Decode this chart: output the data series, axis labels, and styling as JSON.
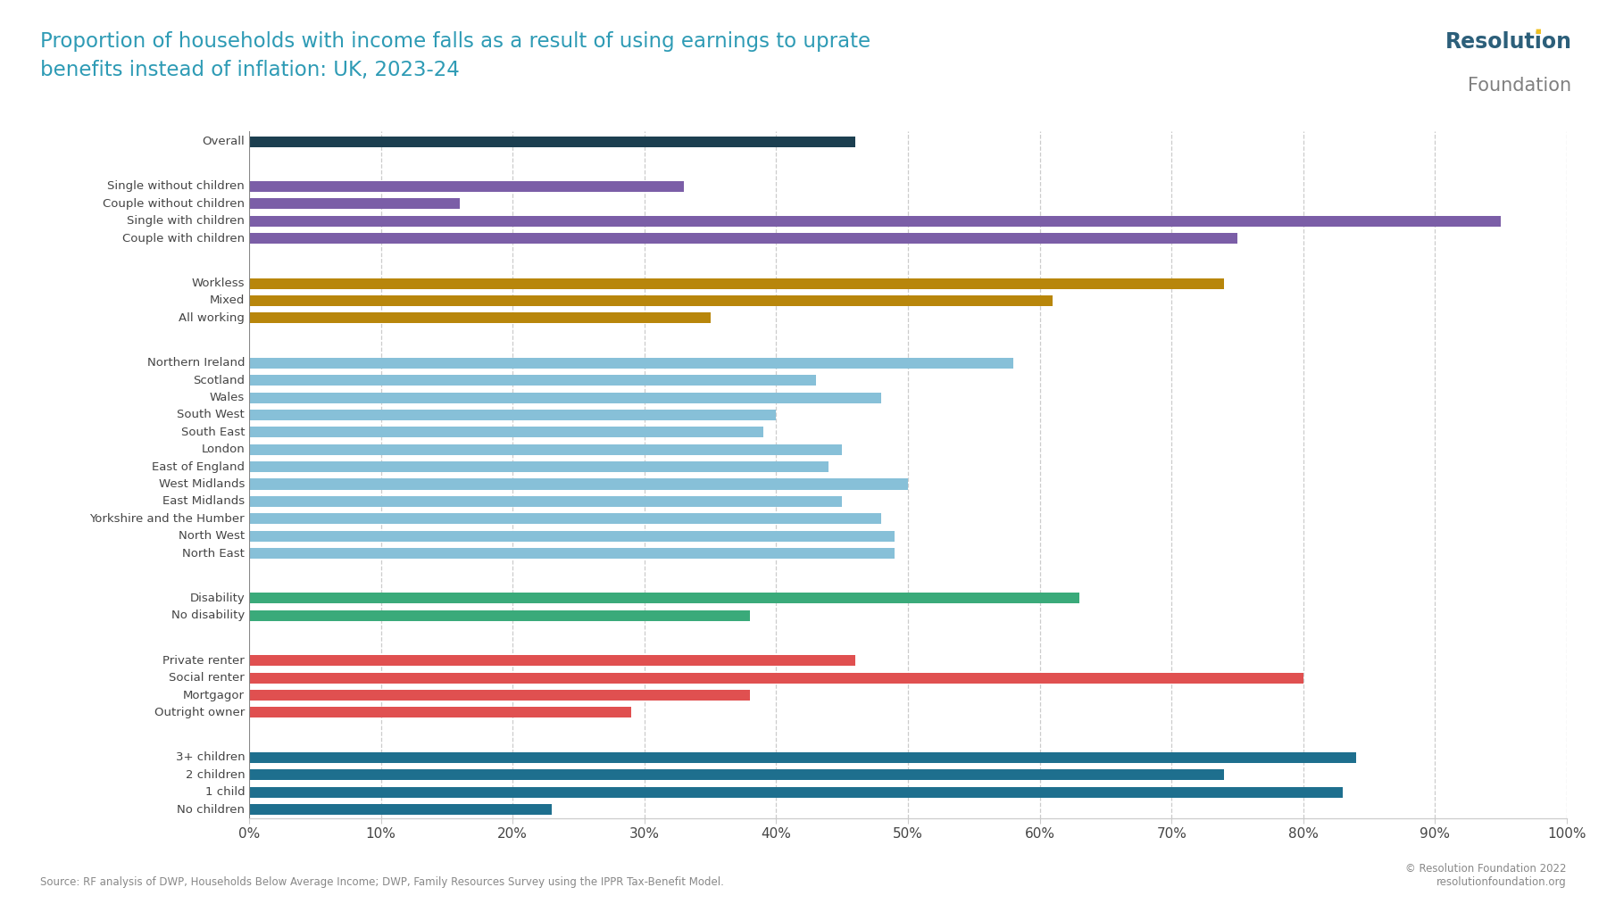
{
  "title": "Proportion of households with income falls as a result of using earnings to uprate\nbenefits instead of inflation: UK, 2023-24",
  "source_text": "Source: RF analysis of DWP, Households Below Average Income; DWP, Family Resources Survey using the IPPR Tax-Benefit Model.",
  "copyright_text": "© Resolution Foundation 2022\nresolutionfoundation.org",
  "background_color": "#ffffff",
  "title_color": "#2e9bb5",
  "categories": [
    "Overall",
    "",
    "Single without children",
    "Couple without children",
    "Single with children",
    "Couple with children",
    "",
    "Workless",
    "Mixed",
    "All working",
    "",
    "Northern Ireland",
    "Scotland",
    "Wales",
    "South West",
    "South East",
    "London",
    "East of England",
    "West Midlands",
    "East Midlands",
    "Yorkshire and the Humber",
    "North West",
    "North East",
    "",
    "Disability",
    "No disability",
    "",
    "Private renter",
    "Social renter",
    "Mortgagor",
    "Outright owner",
    "",
    "3+ children",
    "2 children",
    "1 child",
    "No children"
  ],
  "values": [
    46,
    null,
    33,
    16,
    95,
    75,
    null,
    74,
    61,
    35,
    null,
    58,
    43,
    48,
    40,
    39,
    45,
    44,
    50,
    45,
    48,
    49,
    49,
    null,
    63,
    38,
    null,
    46,
    80,
    38,
    29,
    null,
    84,
    74,
    83,
    23
  ],
  "bar_colors_list": [
    "#1c3f50",
    null,
    "#7b5ea7",
    "#7b5ea7",
    "#7b5ea7",
    "#7b5ea7",
    null,
    "#b8860b",
    "#b8860b",
    "#b8860b",
    null,
    "#87c0d8",
    "#87c0d8",
    "#87c0d8",
    "#87c0d8",
    "#87c0d8",
    "#87c0d8",
    "#87c0d8",
    "#87c0d8",
    "#87c0d8",
    "#87c0d8",
    "#87c0d8",
    "#87c0d8",
    null,
    "#3aaa7a",
    "#3aaa7a",
    null,
    "#e05050",
    "#e05050",
    "#e05050",
    "#e05050",
    null,
    "#1e6f8e",
    "#1e6f8e",
    "#1e6f8e",
    "#1e6f8e"
  ],
  "xlim": [
    0,
    100
  ],
  "xticks": [
    0,
    10,
    20,
    30,
    40,
    50,
    60,
    70,
    80,
    90,
    100
  ],
  "xticklabels": [
    "0%",
    "10%",
    "20%",
    "30%",
    "40%",
    "50%",
    "60%",
    "70%",
    "80%",
    "90%",
    "100%"
  ],
  "logo_text1": "Resolution",
  "logo_text2": "Foundation",
  "logo_color1": "#2c5f7a",
  "logo_color2": "#808080",
  "logo_accent": "#f0c020"
}
